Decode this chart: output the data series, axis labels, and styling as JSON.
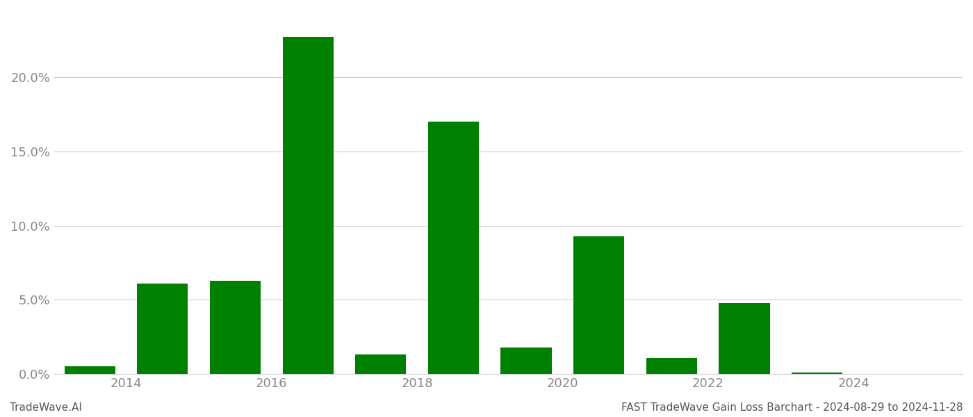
{
  "years": [
    2013,
    2014,
    2015,
    2016,
    2017,
    2018,
    2019,
    2020,
    2021,
    2022,
    2023,
    2024
  ],
  "values": [
    0.005,
    0.061,
    0.063,
    0.227,
    0.013,
    0.17,
    0.018,
    0.093,
    0.011,
    0.048,
    0.001,
    0.0
  ],
  "bar_color": "#008000",
  "background_color": "#ffffff",
  "grid_color": "#cccccc",
  "ylabel_color": "#888888",
  "xlabel_color": "#888888",
  "tick_color": "#888888",
  "footer_left": "TradeWave.AI",
  "footer_right": "FAST TradeWave Gain Loss Barchart - 2024-08-29 to 2024-11-28",
  "ylim": [
    0,
    0.245
  ],
  "yticks": [
    0.0,
    0.05,
    0.1,
    0.15,
    0.2
  ],
  "xtick_positions": [
    2013.5,
    2015.5,
    2017.5,
    2019.5,
    2021.5,
    2023.5
  ],
  "xtick_labels": [
    "2014",
    "2016",
    "2018",
    "2020",
    "2022",
    "2024"
  ],
  "bar_width": 0.7,
  "spine_color": "#cccccc",
  "font_family": "DejaVu Sans",
  "xlim": [
    2012.5,
    2025.0
  ]
}
